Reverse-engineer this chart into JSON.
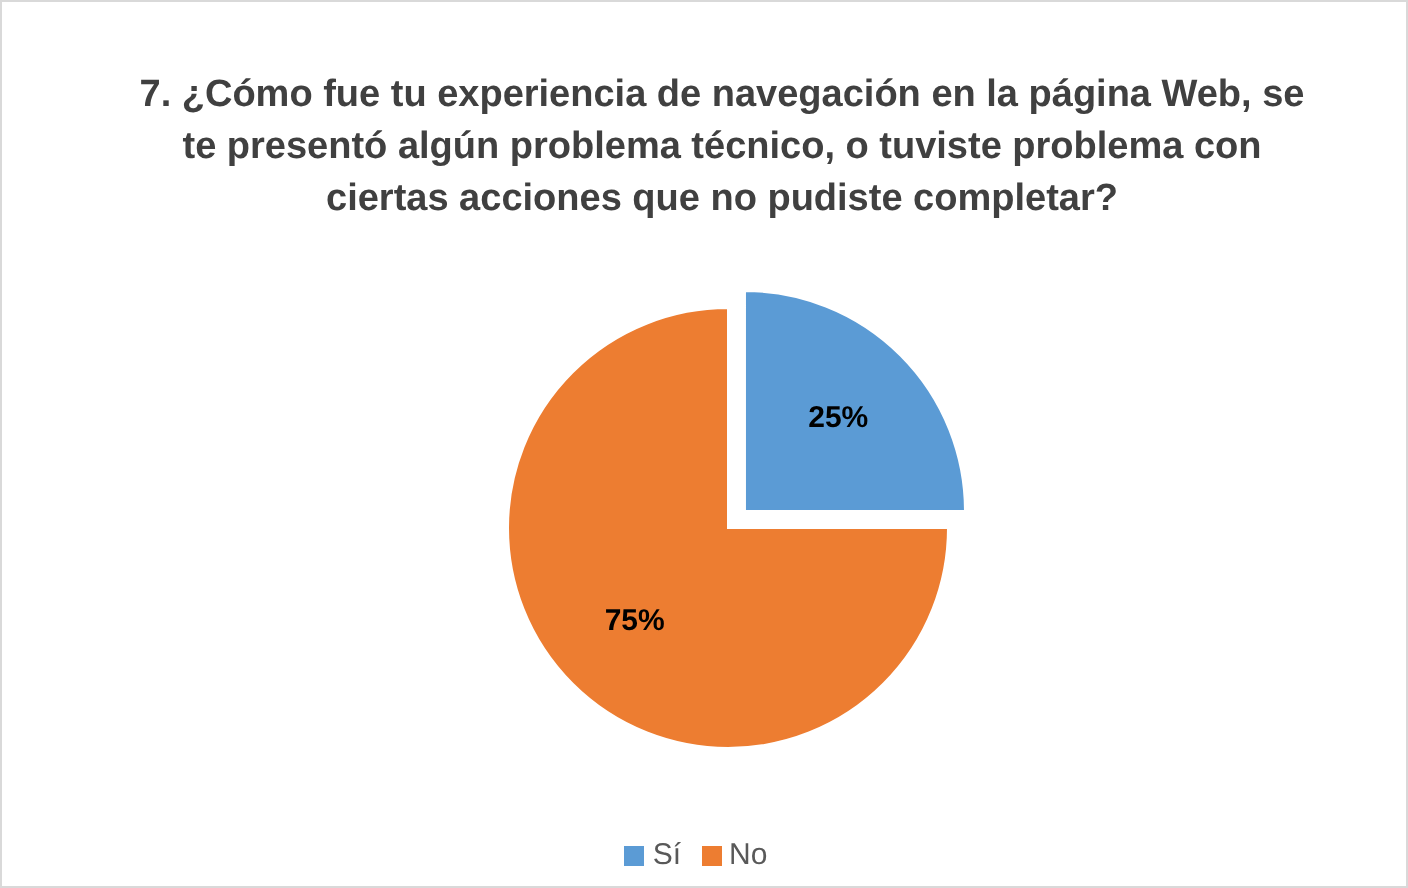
{
  "chart_data": {
    "type": "pie",
    "title": "7. ¿Cómo fue tu experiencia de navegación en la página Web, se te presentó algún problema técnico, o tuviste problema con ciertas acciones que no pudiste completar?",
    "categories": [
      "Sí",
      "No"
    ],
    "values": [
      25,
      75
    ],
    "colors": [
      "#5b9bd5",
      "#ed7d31"
    ],
    "value_labels": [
      "25%",
      "75%"
    ],
    "legend": "bottom"
  }
}
